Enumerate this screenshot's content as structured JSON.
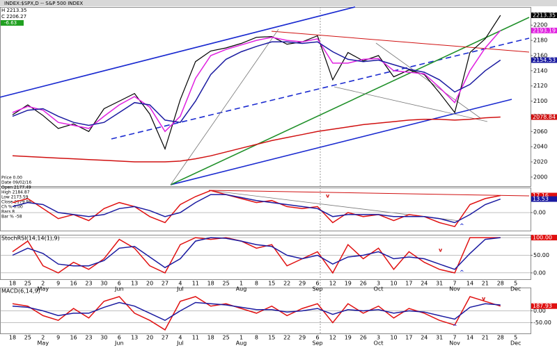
{
  "header": {
    "title": "INDEX:$SPX,D -- S&P 500 INDEX",
    "high": "H 2213.35",
    "close": "C 2206.27",
    "change": "-6.63"
  },
  "info": [
    "Price 0.00",
    "Date 09/02/16",
    "Open 2177.49",
    "High 2184.87",
    "Low 2173.59",
    "Close 2179.98",
    "Ch % 0.00",
    "Bars 8",
    "Bar % -58"
  ],
  "chart_data": [
    {
      "type": "line",
      "ylim": [
        1988,
        2224
      ],
      "yticks": [
        2000,
        2020,
        2040,
        2060,
        2080,
        2100,
        2120,
        2140,
        2160,
        2180,
        2200
      ],
      "series": [
        {
          "name": "Close",
          "label": "2213.35",
          "color": "#000000",
          "values": [
            2082,
            2095,
            2081,
            2064,
            2070,
            2060,
            2090,
            2100,
            2110,
            2083,
            2037,
            2102,
            2152,
            2166,
            2170,
            2176,
            2184,
            2185,
            2175,
            2178,
            2186,
            2128,
            2164,
            2153,
            2160,
            2132,
            2141,
            2135,
            2111,
            2085,
            2164,
            2182,
            2213,
            null
          ]
        },
        {
          "name": "MA short",
          "label": "2193.19",
          "color": "#e020e0",
          "values": [
            2085,
            2093,
            2088,
            2072,
            2068,
            2064,
            2080,
            2095,
            2106,
            2092,
            2060,
            2080,
            2130,
            2160,
            2168,
            2174,
            2180,
            2184,
            2180,
            2178,
            2182,
            2150,
            2150,
            2155,
            2156,
            2140,
            2138,
            2136,
            2118,
            2098,
            2140,
            2170,
            2193,
            null
          ]
        },
        {
          "name": "MA mid",
          "label": "2154.53",
          "color": "#1a1aa0",
          "values": [
            2080,
            2088,
            2090,
            2080,
            2072,
            2068,
            2072,
            2085,
            2098,
            2095,
            2075,
            2072,
            2100,
            2135,
            2155,
            2165,
            2172,
            2178,
            2178,
            2176,
            2178,
            2165,
            2155,
            2152,
            2154,
            2148,
            2142,
            2138,
            2128,
            2112,
            2122,
            2140,
            2154,
            null
          ]
        },
        {
          "name": "MA long",
          "label": "2078.84",
          "color": "#d01010",
          "values": [
            2028,
            2027,
            2026,
            2025,
            2024,
            2023,
            2022,
            2021,
            2020,
            2020,
            2020,
            2021,
            2024,
            2028,
            2033,
            2038,
            2043,
            2048,
            2052,
            2056,
            2060,
            2063,
            2066,
            2069,
            2071,
            2073,
            2075,
            2076,
            2076,
            2075,
            2076,
            2078,
            2079,
            null
          ]
        }
      ]
    },
    {
      "type": "line",
      "ylim": [
        -18,
        25
      ],
      "yticks": [
        {
          "value": 0,
          "label": "0.00"
        }
      ],
      "annotations": [
        "v",
        "^"
      ],
      "series": [
        {
          "name": "Osc",
          "label": "17.16",
          "color": "#e01010",
          "values": [
            10,
            14,
            4,
            -6,
            -2,
            -8,
            4,
            10,
            6,
            -4,
            -10,
            8,
            16,
            22,
            18,
            14,
            10,
            12,
            6,
            4,
            6,
            -10,
            0,
            -4,
            -2,
            -8,
            -2,
            -4,
            -10,
            -14,
            8,
            14,
            17,
            null
          ]
        },
        {
          "name": "Signal",
          "label": "13.53",
          "color": "#1a1aa0",
          "values": [
            6,
            10,
            8,
            0,
            -2,
            -4,
            -2,
            4,
            6,
            2,
            -4,
            0,
            10,
            18,
            18,
            15,
            12,
            10,
            8,
            6,
            4,
            -4,
            -2,
            -2,
            -2,
            -4,
            -4,
            -4,
            -6,
            -10,
            -2,
            8,
            13.5,
            null
          ]
        }
      ]
    },
    {
      "type": "line",
      "title": "StochRSI(14,14(1),9)",
      "ylim": [
        -18,
        108
      ],
      "yticks": [
        {
          "value": 0,
          "label": "0.00"
        },
        {
          "value": 50,
          "label": "50.00"
        },
        {
          "value": 100,
          "label": "100.00"
        }
      ],
      "annotations": [
        "v",
        "^"
      ],
      "categories": [
        "18",
        "25",
        "2",
        "9",
        "16",
        "23",
        "30",
        "6",
        "13",
        "20",
        "27",
        "4",
        "11",
        "18",
        "25",
        "1",
        "8",
        "15",
        "22",
        "29",
        "6",
        "12",
        "19",
        "26",
        "3",
        "10",
        "17",
        "24",
        "31",
        "7",
        "14",
        "21",
        "28",
        "5"
      ],
      "months": [
        null,
        null,
        "May",
        null,
        null,
        null,
        null,
        "Jun",
        null,
        null,
        null,
        "Jul",
        null,
        null,
        null,
        "Aug",
        null,
        null,
        null,
        null,
        "Sep",
        null,
        null,
        null,
        "Oct",
        null,
        null,
        null,
        null,
        "Nov",
        null,
        null,
        null,
        "Dec"
      ],
      "series": [
        {
          "name": "StochRSI",
          "label": "100.00",
          "color": "#e01010",
          "values": [
            60,
            90,
            20,
            0,
            30,
            10,
            40,
            95,
            70,
            20,
            0,
            80,
            100,
            95,
            100,
            90,
            70,
            80,
            20,
            40,
            60,
            0,
            80,
            40,
            70,
            10,
            60,
            30,
            10,
            0,
            100,
            100,
            100,
            null
          ]
        },
        {
          "name": "Signal",
          "color": "#1a1aa0",
          "values": [
            50,
            70,
            55,
            25,
            20,
            20,
            35,
            70,
            75,
            45,
            15,
            40,
            90,
            100,
            98,
            90,
            80,
            75,
            50,
            40,
            50,
            25,
            45,
            50,
            60,
            40,
            45,
            40,
            25,
            10,
            55,
            95,
            100,
            null
          ]
        }
      ]
    },
    {
      "type": "line",
      "title": "MACD(6,14,9)",
      "ylim": [
        -95,
        98
      ],
      "yticks": [
        {
          "value": 0,
          "label": "0.00"
        },
        {
          "value": -50,
          "label": "-50.00"
        }
      ],
      "annotations": [
        "v",
        "^"
      ],
      "categories": [
        "18",
        "25",
        "2",
        "9",
        "16",
        "23",
        "30",
        "6",
        "13",
        "20",
        "27",
        "4",
        "11",
        "18",
        "25",
        "1",
        "8",
        "15",
        "22",
        "29",
        "6",
        "12",
        "19",
        "26",
        "3",
        "10",
        "17",
        "24",
        "31",
        "7",
        "14",
        "21",
        "28",
        "5"
      ],
      "months": [
        null,
        null,
        "May",
        null,
        null,
        null,
        null,
        "Jun",
        null,
        null,
        null,
        "Jul",
        null,
        null,
        null,
        "Aug",
        null,
        null,
        null,
        null,
        "Sep",
        null,
        null,
        null,
        "Oct",
        null,
        null,
        null,
        null,
        "Nov",
        null,
        null,
        null,
        "Dec"
      ],
      "series": [
        {
          "name": "MACD",
          "label": "187.93",
          "color": "#e01010",
          "values": [
            30,
            20,
            -20,
            -40,
            10,
            -30,
            40,
            60,
            -10,
            -40,
            -80,
            40,
            60,
            20,
            30,
            10,
            -10,
            20,
            -20,
            10,
            30,
            -50,
            30,
            -10,
            20,
            -30,
            10,
            -10,
            -40,
            -60,
            60,
            40,
            20,
            null
          ]
        },
        {
          "name": "Signal",
          "color": "#1a1aa0",
          "values": [
            20,
            15,
            0,
            -20,
            -10,
            -10,
            15,
            35,
            20,
            -10,
            -40,
            0,
            35,
            30,
            25,
            15,
            5,
            5,
            -5,
            0,
            10,
            -15,
            5,
            0,
            5,
            -10,
            0,
            -5,
            -20,
            -35,
            15,
            30,
            25,
            null
          ]
        }
      ]
    }
  ]
}
